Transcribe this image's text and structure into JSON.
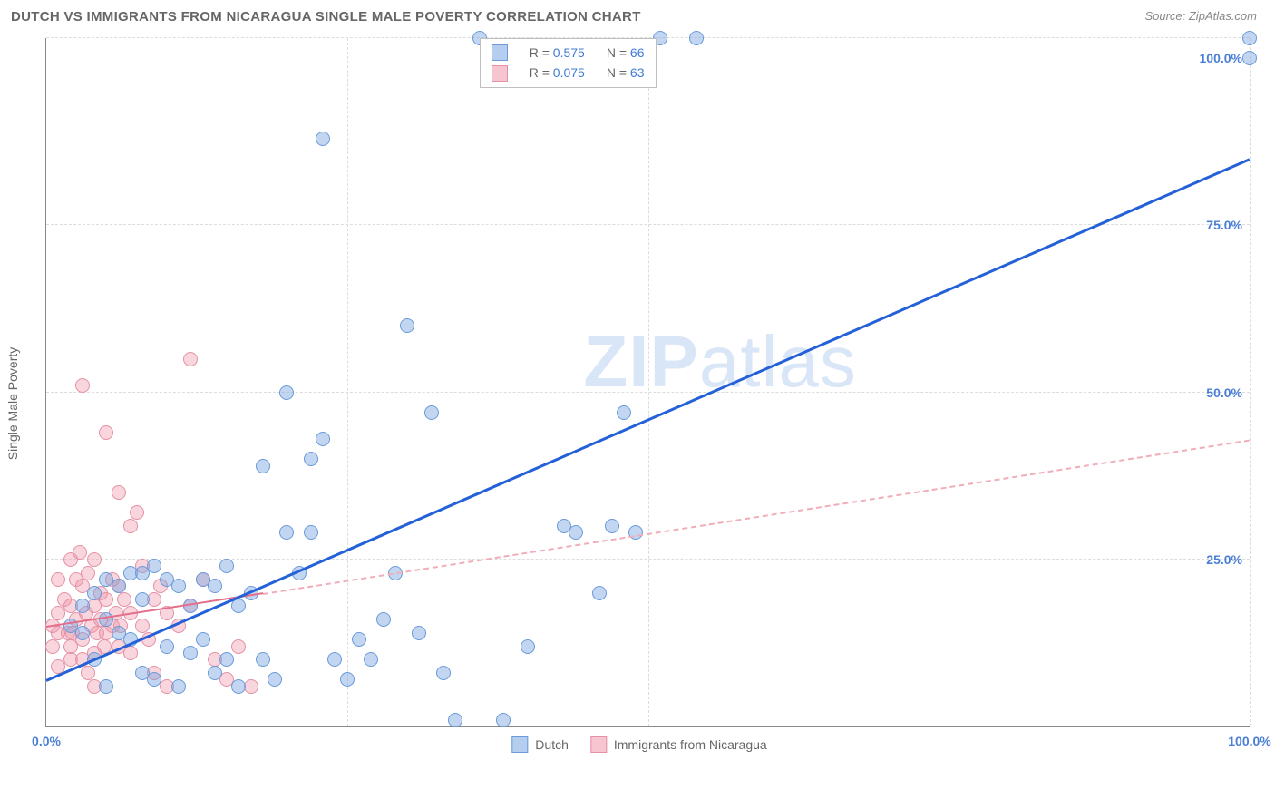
{
  "header": {
    "title": "DUTCH VS IMMIGRANTS FROM NICARAGUA SINGLE MALE POVERTY CORRELATION CHART",
    "source_prefix": "Source: ",
    "source_name": "ZipAtlas.com"
  },
  "y_axis": {
    "label": "Single Male Poverty"
  },
  "watermark": {
    "prefix": "ZIP",
    "suffix": "atlas"
  },
  "chart": {
    "type": "scatter",
    "xlim": [
      0,
      100
    ],
    "ylim": [
      0,
      103
    ],
    "x_ticks": [
      {
        "pos": 0,
        "label": "0.0%"
      },
      {
        "pos": 100,
        "label": "100.0%"
      }
    ],
    "y_ticks": [
      {
        "pos": 25,
        "label": "25.0%"
      },
      {
        "pos": 50,
        "label": "50.0%"
      },
      {
        "pos": 75,
        "label": "75.0%"
      },
      {
        "pos": 100,
        "label": "100.0%"
      }
    ],
    "x_grid": [
      25,
      50,
      75,
      100
    ],
    "y_grid": [
      25,
      50,
      75,
      103
    ],
    "colors": {
      "blue_fill": "rgba(120,165,225,0.45)",
      "blue_stroke": "#6a9ad9",
      "blue_line": "#2461d9",
      "pink_fill": "rgba(240,150,170,0.40)",
      "pink_stroke": "#e590a5",
      "pink_line": "#e46f8b",
      "pink_dash": "#f0aeba",
      "grid": "#dcdcdc",
      "axis": "#888888",
      "text": "#666666",
      "value_text": "#3f7bd6",
      "background": "#ffffff"
    },
    "series": {
      "blue": {
        "name": "Dutch",
        "R": "0.575",
        "N": "66",
        "trend_solid": {
          "x1": 0,
          "y1": 7,
          "x2": 100,
          "y2": 85
        },
        "points": [
          [
            2,
            15
          ],
          [
            3,
            14
          ],
          [
            3,
            18
          ],
          [
            4,
            20
          ],
          [
            4,
            10
          ],
          [
            5,
            22
          ],
          [
            5,
            16
          ],
          [
            5,
            6
          ],
          [
            6,
            21
          ],
          [
            6,
            14
          ],
          [
            7,
            23
          ],
          [
            7,
            13
          ],
          [
            8,
            19
          ],
          [
            8,
            8
          ],
          [
            8,
            23
          ],
          [
            9,
            24
          ],
          [
            9,
            7
          ],
          [
            10,
            22
          ],
          [
            10,
            12
          ],
          [
            11,
            21
          ],
          [
            11,
            6
          ],
          [
            12,
            18
          ],
          [
            12,
            11
          ],
          [
            13,
            22
          ],
          [
            13,
            13
          ],
          [
            14,
            21
          ],
          [
            14,
            8
          ],
          [
            15,
            24
          ],
          [
            15,
            10
          ],
          [
            16,
            18
          ],
          [
            16,
            6
          ],
          [
            17,
            20
          ],
          [
            18,
            10
          ],
          [
            18,
            39
          ],
          [
            19,
            7
          ],
          [
            20,
            29
          ],
          [
            20,
            50
          ],
          [
            21,
            23
          ],
          [
            22,
            29
          ],
          [
            22,
            40
          ],
          [
            23,
            43
          ],
          [
            23,
            88
          ],
          [
            24,
            10
          ],
          [
            25,
            7
          ],
          [
            26,
            13
          ],
          [
            27,
            10
          ],
          [
            28,
            16
          ],
          [
            29,
            23
          ],
          [
            30,
            60
          ],
          [
            31,
            14
          ],
          [
            32,
            47
          ],
          [
            33,
            8
          ],
          [
            34,
            1
          ],
          [
            36,
            103
          ],
          [
            38,
            1
          ],
          [
            40,
            12
          ],
          [
            43,
            30
          ],
          [
            44,
            29
          ],
          [
            46,
            20
          ],
          [
            47,
            30
          ],
          [
            48,
            47
          ],
          [
            49,
            29
          ],
          [
            51,
            103
          ],
          [
            54,
            103
          ],
          [
            100,
            103
          ],
          [
            100,
            100
          ]
        ]
      },
      "pink": {
        "name": "Immigrants from Nicaragua",
        "R": "0.075",
        "N": "63",
        "trend_solid": {
          "x1": 0,
          "y1": 15,
          "x2": 18,
          "y2": 20
        },
        "trend_dash": {
          "x1": 18,
          "y1": 20,
          "x2": 100,
          "y2": 43
        },
        "points": [
          [
            0.5,
            12
          ],
          [
            0.5,
            15
          ],
          [
            1,
            14
          ],
          [
            1,
            17
          ],
          [
            1,
            22
          ],
          [
            1,
            9
          ],
          [
            1.5,
            19
          ],
          [
            1.8,
            14
          ],
          [
            2,
            25
          ],
          [
            2,
            18
          ],
          [
            2,
            12
          ],
          [
            2,
            10
          ],
          [
            2.2,
            14
          ],
          [
            2.5,
            22
          ],
          [
            2.5,
            16
          ],
          [
            2.8,
            26
          ],
          [
            3,
            21
          ],
          [
            3,
            13
          ],
          [
            3,
            10
          ],
          [
            3,
            51
          ],
          [
            3.3,
            17
          ],
          [
            3.5,
            23
          ],
          [
            3.5,
            8
          ],
          [
            3.8,
            15
          ],
          [
            4,
            18
          ],
          [
            4,
            11
          ],
          [
            4,
            25
          ],
          [
            4,
            6
          ],
          [
            4.2,
            14
          ],
          [
            4.5,
            20
          ],
          [
            4.5,
            16
          ],
          [
            4.8,
            12
          ],
          [
            5,
            19
          ],
          [
            5,
            14
          ],
          [
            5,
            44
          ],
          [
            5.5,
            22
          ],
          [
            5.5,
            15
          ],
          [
            5.8,
            17
          ],
          [
            6,
            35
          ],
          [
            6,
            12
          ],
          [
            6,
            21
          ],
          [
            6.2,
            15
          ],
          [
            6.5,
            19
          ],
          [
            7,
            30
          ],
          [
            7,
            11
          ],
          [
            7,
            17
          ],
          [
            7.5,
            32
          ],
          [
            8,
            15
          ],
          [
            8,
            24
          ],
          [
            8.5,
            13
          ],
          [
            9,
            19
          ],
          [
            9,
            8
          ],
          [
            9.5,
            21
          ],
          [
            10,
            17
          ],
          [
            10,
            6
          ],
          [
            11,
            15
          ],
          [
            12,
            55
          ],
          [
            12,
            18
          ],
          [
            13,
            22
          ],
          [
            14,
            10
          ],
          [
            15,
            7
          ],
          [
            16,
            12
          ],
          [
            17,
            6
          ]
        ]
      }
    }
  },
  "legend_top": {
    "rows": [
      {
        "swatch": "blue",
        "R_label": "R =",
        "R": "0.575",
        "N_label": "N =",
        "N": "66"
      },
      {
        "swatch": "pink",
        "R_label": "R =",
        "R": "0.075",
        "N_label": "N =",
        "N": "63"
      }
    ]
  },
  "legend_bottom": [
    {
      "swatch": "blue",
      "label": "Dutch"
    },
    {
      "swatch": "pink",
      "label": "Immigrants from Nicaragua"
    }
  ]
}
